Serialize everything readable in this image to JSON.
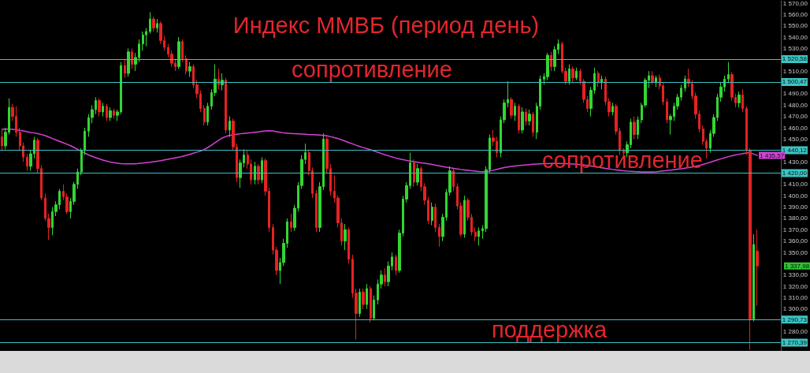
{
  "chart_data": {
    "type": "candlestick",
    "title": "Индекс ММВБ (период день)",
    "categories": [
      null,
      null,
      null,
      null,
      null,
      null,
      null,
      null,
      null,
      null,
      null,
      null,
      null,
      null,
      null,
      null,
      null,
      null,
      null,
      null,
      null,
      null,
      null,
      null,
      null,
      null,
      null,
      null,
      null,
      null,
      null,
      null,
      null,
      null,
      null,
      null,
      null,
      null,
      null,
      null,
      null,
      null,
      null,
      null,
      null,
      null,
      null,
      null,
      null,
      null,
      null,
      null,
      null,
      null,
      null,
      null,
      null,
      null,
      null,
      null,
      null,
      null,
      null,
      null,
      null,
      null,
      null,
      null,
      null,
      null,
      null,
      null,
      null,
      null,
      null,
      null,
      null,
      null,
      null,
      null,
      null,
      null,
      null,
      null,
      null,
      null,
      null,
      null,
      null,
      null,
      null,
      null,
      null,
      null,
      null,
      null,
      null,
      null,
      null,
      null,
      null,
      null,
      null,
      null,
      null,
      null,
      null,
      null,
      null,
      null,
      null,
      null,
      null,
      null,
      null,
      null,
      null,
      null,
      null,
      null,
      null,
      null,
      null,
      null,
      null,
      null,
      null,
      null,
      null,
      null,
      null,
      null,
      null,
      null,
      null,
      null,
      null,
      null,
      null,
      null,
      null,
      null,
      null,
      null,
      null,
      null,
      null,
      null,
      null,
      null,
      null,
      null,
      null,
      null,
      null,
      null,
      null,
      null,
      null,
      null,
      null,
      null,
      null,
      null,
      null,
      null,
      null,
      null,
      null,
      null,
      null,
      null,
      null,
      null,
      null,
      null,
      null,
      null,
      null,
      null,
      null,
      null,
      null,
      null,
      null,
      null,
      null,
      null,
      null,
      null,
      null,
      null,
      null,
      null,
      null,
      null,
      null,
      null,
      null,
      null,
      null,
      null,
      null,
      null,
      null,
      null,
      null,
      null,
      null,
      null,
      null,
      null,
      null,
      null,
      null,
      null
    ],
    "ohlc": [
      [
        1452,
        1458,
        1440,
        1444
      ],
      [
        1444,
        1460,
        1441,
        1456
      ],
      [
        1456,
        1486,
        1454,
        1478
      ],
      [
        1478,
        1481,
        1466,
        1470
      ],
      [
        1470,
        1479,
        1452,
        1456
      ],
      [
        1456,
        1460,
        1440,
        1444
      ],
      [
        1444,
        1447,
        1430,
        1434
      ],
      [
        1434,
        1437,
        1422,
        1426
      ],
      [
        1426,
        1440,
        1422,
        1437
      ],
      [
        1437,
        1452,
        1433,
        1449
      ],
      [
        1449,
        1451,
        1420,
        1424
      ],
      [
        1424,
        1427,
        1396,
        1398
      ],
      [
        1398,
        1402,
        1378,
        1380
      ],
      [
        1380,
        1384,
        1361,
        1372
      ],
      [
        1372,
        1390,
        1365,
        1386
      ],
      [
        1386,
        1395,
        1382,
        1392
      ],
      [
        1392,
        1406,
        1388,
        1404
      ],
      [
        1404,
        1410,
        1396,
        1399
      ],
      [
        1399,
        1402,
        1384,
        1386
      ],
      [
        1386,
        1398,
        1380,
        1395
      ],
      [
        1395,
        1412,
        1392,
        1410
      ],
      [
        1410,
        1424,
        1406,
        1421
      ],
      [
        1421,
        1442,
        1418,
        1440
      ],
      [
        1440,
        1460,
        1436,
        1457
      ],
      [
        1457,
        1472,
        1452,
        1469
      ],
      [
        1469,
        1480,
        1464,
        1476
      ],
      [
        1476,
        1487,
        1472,
        1484
      ],
      [
        1484,
        1486,
        1470,
        1474
      ],
      [
        1474,
        1482,
        1470,
        1479
      ],
      [
        1479,
        1481,
        1466,
        1469
      ],
      [
        1469,
        1478,
        1466,
        1475
      ],
      [
        1475,
        1477,
        1468,
        1471
      ],
      [
        1471,
        1476,
        1466,
        1474
      ],
      [
        1474,
        1518,
        1472,
        1515
      ],
      [
        1515,
        1520,
        1504,
        1508
      ],
      [
        1508,
        1530,
        1505,
        1527
      ],
      [
        1527,
        1530,
        1512,
        1516
      ],
      [
        1516,
        1526,
        1510,
        1522
      ],
      [
        1522,
        1538,
        1518,
        1534
      ],
      [
        1534,
        1545,
        1528,
        1542
      ],
      [
        1542,
        1548,
        1532,
        1545
      ],
      [
        1545,
        1562,
        1543,
        1556
      ],
      [
        1556,
        1558,
        1545,
        1548
      ],
      [
        1548,
        1556,
        1544,
        1552
      ],
      [
        1552,
        1554,
        1534,
        1537
      ],
      [
        1537,
        1541,
        1528,
        1531
      ],
      [
        1531,
        1534,
        1522,
        1525
      ],
      [
        1525,
        1528,
        1514,
        1517
      ],
      [
        1517,
        1521,
        1510,
        1514
      ],
      [
        1514,
        1540,
        1512,
        1536
      ],
      [
        1536,
        1538,
        1518,
        1521
      ],
      [
        1521,
        1524,
        1507,
        1510
      ],
      [
        1510,
        1518,
        1505,
        1514
      ],
      [
        1514,
        1516,
        1495,
        1498
      ],
      [
        1498,
        1502,
        1486,
        1490
      ],
      [
        1490,
        1493,
        1474,
        1477
      ],
      [
        1477,
        1480,
        1462,
        1465
      ],
      [
        1465,
        1482,
        1462,
        1479
      ],
      [
        1479,
        1494,
        1476,
        1491
      ],
      [
        1491,
        1516,
        1488,
        1503
      ],
      [
        1503,
        1512,
        1494,
        1498
      ],
      [
        1498,
        1508,
        1493,
        1502
      ],
      [
        1502,
        1504,
        1455,
        1458
      ],
      [
        1458,
        1470,
        1452,
        1466
      ],
      [
        1466,
        1468,
        1440,
        1443
      ],
      [
        1443,
        1446,
        1412,
        1416
      ],
      [
        1416,
        1432,
        1407,
        1429
      ],
      [
        1429,
        1441,
        1425,
        1436
      ],
      [
        1436,
        1440,
        1424,
        1428
      ],
      [
        1428,
        1432,
        1410,
        1414
      ],
      [
        1414,
        1430,
        1410,
        1426
      ],
      [
        1426,
        1428,
        1410,
        1414
      ],
      [
        1414,
        1434,
        1411,
        1431
      ],
      [
        1431,
        1433,
        1400,
        1404
      ],
      [
        1404,
        1407,
        1368,
        1372
      ],
      [
        1372,
        1375,
        1348,
        1352
      ],
      [
        1352,
        1355,
        1330,
        1334
      ],
      [
        1334,
        1345,
        1322,
        1341
      ],
      [
        1341,
        1362,
        1338,
        1358
      ],
      [
        1358,
        1380,
        1354,
        1377
      ],
      [
        1377,
        1384,
        1368,
        1372
      ],
      [
        1372,
        1392,
        1369,
        1389
      ],
      [
        1389,
        1412,
        1386,
        1409
      ],
      [
        1409,
        1436,
        1406,
        1432
      ],
      [
        1432,
        1446,
        1428,
        1438
      ],
      [
        1438,
        1440,
        1418,
        1422
      ],
      [
        1422,
        1425,
        1398,
        1402
      ],
      [
        1402,
        1405,
        1368,
        1372
      ],
      [
        1372,
        1412,
        1368,
        1408
      ],
      [
        1408,
        1455,
        1405,
        1450
      ],
      [
        1450,
        1452,
        1420,
        1424
      ],
      [
        1424,
        1428,
        1400,
        1404
      ],
      [
        1404,
        1418,
        1394,
        1398
      ],
      [
        1398,
        1400,
        1372,
        1376
      ],
      [
        1376,
        1380,
        1356,
        1360
      ],
      [
        1360,
        1375,
        1352,
        1370
      ],
      [
        1370,
        1372,
        1340,
        1344
      ],
      [
        1344,
        1348,
        1310,
        1314
      ],
      [
        1314,
        1318,
        1273,
        1296
      ],
      [
        1296,
        1318,
        1293,
        1315
      ],
      [
        1315,
        1318,
        1300,
        1304
      ],
      [
        1304,
        1322,
        1300,
        1318
      ],
      [
        1318,
        1320,
        1288,
        1292
      ],
      [
        1292,
        1312,
        1290,
        1308
      ],
      [
        1308,
        1326,
        1304,
        1322
      ],
      [
        1322,
        1334,
        1318,
        1330
      ],
      [
        1330,
        1336,
        1320,
        1324
      ],
      [
        1324,
        1342,
        1320,
        1338
      ],
      [
        1338,
        1350,
        1334,
        1346
      ],
      [
        1346,
        1348,
        1330,
        1334
      ],
      [
        1334,
        1370,
        1332,
        1367
      ],
      [
        1367,
        1400,
        1364,
        1397
      ],
      [
        1397,
        1412,
        1394,
        1409
      ],
      [
        1409,
        1438,
        1406,
        1429
      ],
      [
        1429,
        1432,
        1408,
        1412
      ],
      [
        1412,
        1428,
        1409,
        1424
      ],
      [
        1424,
        1426,
        1404,
        1408
      ],
      [
        1408,
        1411,
        1392,
        1396
      ],
      [
        1396,
        1399,
        1375,
        1378
      ],
      [
        1378,
        1394,
        1374,
        1390
      ],
      [
        1390,
        1393,
        1368,
        1372
      ],
      [
        1372,
        1375,
        1355,
        1364
      ],
      [
        1364,
        1384,
        1360,
        1381
      ],
      [
        1381,
        1406,
        1378,
        1403
      ],
      [
        1403,
        1426,
        1400,
        1422
      ],
      [
        1422,
        1424,
        1404,
        1408
      ],
      [
        1408,
        1411,
        1388,
        1391
      ],
      [
        1391,
        1394,
        1364,
        1366
      ],
      [
        1366,
        1400,
        1363,
        1396
      ],
      [
        1396,
        1398,
        1378,
        1381
      ],
      [
        1381,
        1384,
        1365,
        1368
      ],
      [
        1368,
        1372,
        1360,
        1364
      ],
      [
        1364,
        1372,
        1356,
        1369
      ],
      [
        1369,
        1374,
        1362,
        1371
      ],
      [
        1371,
        1426,
        1368,
        1423
      ],
      [
        1423,
        1454,
        1420,
        1451
      ],
      [
        1451,
        1458,
        1444,
        1448
      ],
      [
        1448,
        1452,
        1434,
        1438
      ],
      [
        1438,
        1470,
        1434,
        1467
      ],
      [
        1467,
        1485,
        1464,
        1482
      ],
      [
        1482,
        1501,
        1478,
        1485
      ],
      [
        1485,
        1487,
        1468,
        1471
      ],
      [
        1471,
        1482,
        1466,
        1479
      ],
      [
        1479,
        1481,
        1455,
        1458
      ],
      [
        1458,
        1478,
        1455,
        1474
      ],
      [
        1474,
        1477,
        1462,
        1466
      ],
      [
        1466,
        1476,
        1462,
        1472
      ],
      [
        1472,
        1474,
        1452,
        1456
      ],
      [
        1456,
        1482,
        1450,
        1479
      ],
      [
        1479,
        1506,
        1476,
        1503
      ],
      [
        1503,
        1508,
        1498,
        1505
      ],
      [
        1505,
        1526,
        1502,
        1524
      ],
      [
        1524,
        1527,
        1510,
        1514
      ],
      [
        1514,
        1532,
        1510,
        1529
      ],
      [
        1529,
        1538,
        1525,
        1534
      ],
      [
        1534,
        1536,
        1508,
        1510
      ],
      [
        1510,
        1513,
        1498,
        1501
      ],
      [
        1501,
        1516,
        1498,
        1512
      ],
      [
        1512,
        1514,
        1500,
        1504
      ],
      [
        1504,
        1513,
        1502,
        1510
      ],
      [
        1510,
        1512,
        1498,
        1501
      ],
      [
        1501,
        1503,
        1482,
        1485
      ],
      [
        1485,
        1488,
        1474,
        1477
      ],
      [
        1477,
        1496,
        1470,
        1493
      ],
      [
        1493,
        1513,
        1490,
        1508
      ],
      [
        1508,
        1510,
        1496,
        1500
      ],
      [
        1500,
        1506,
        1494,
        1503
      ],
      [
        1503,
        1505,
        1480,
        1483
      ],
      [
        1483,
        1486,
        1470,
        1474
      ],
      [
        1474,
        1482,
        1471,
        1479
      ],
      [
        1479,
        1481,
        1454,
        1457
      ],
      [
        1457,
        1460,
        1436,
        1440
      ],
      [
        1440,
        1442,
        1426,
        1438
      ],
      [
        1438,
        1448,
        1434,
        1445
      ],
      [
        1445,
        1468,
        1442,
        1465
      ],
      [
        1465,
        1470,
        1450,
        1454
      ],
      [
        1454,
        1470,
        1450,
        1467
      ],
      [
        1467,
        1482,
        1464,
        1480
      ],
      [
        1480,
        1504,
        1478,
        1502
      ],
      [
        1502,
        1510,
        1495,
        1506
      ],
      [
        1506,
        1510,
        1498,
        1500
      ],
      [
        1500,
        1506,
        1496,
        1504
      ],
      [
        1504,
        1507,
        1494,
        1497
      ],
      [
        1497,
        1500,
        1480,
        1483
      ],
      [
        1483,
        1486,
        1464,
        1467
      ],
      [
        1467,
        1472,
        1454,
        1470
      ],
      [
        1470,
        1482,
        1466,
        1479
      ],
      [
        1479,
        1490,
        1476,
        1487
      ],
      [
        1487,
        1498,
        1484,
        1495
      ],
      [
        1495,
        1506,
        1492,
        1503
      ],
      [
        1503,
        1512,
        1496,
        1499
      ],
      [
        1499,
        1502,
        1485,
        1488
      ],
      [
        1488,
        1491,
        1468,
        1472
      ],
      [
        1472,
        1475,
        1456,
        1459
      ],
      [
        1459,
        1462,
        1445,
        1448
      ],
      [
        1448,
        1450,
        1433,
        1442
      ],
      [
        1442,
        1458,
        1438,
        1455
      ],
      [
        1455,
        1472,
        1452,
        1469
      ],
      [
        1469,
        1490,
        1466,
        1487
      ],
      [
        1487,
        1500,
        1483,
        1496
      ],
      [
        1496,
        1506,
        1492,
        1503
      ],
      [
        1503,
        1518,
        1500,
        1507
      ],
      [
        1507,
        1509,
        1484,
        1487
      ],
      [
        1487,
        1490,
        1478,
        1482
      ],
      [
        1482,
        1492,
        1478,
        1489
      ],
      [
        1489,
        1494,
        1474,
        1477
      ],
      [
        1477,
        1479,
        1436,
        1440
      ],
      [
        1440,
        1442,
        1264,
        1291
      ],
      [
        1291,
        1366,
        1289,
        1357
      ],
      [
        1351,
        1370,
        1303,
        1337.98
      ],
      null,
      null,
      null,
      null,
      null,
      null
    ],
    "value_labels": [
      null,
      null,
      null,
      null,
      null,
      null,
      null,
      null,
      null,
      null,
      null,
      null,
      null,
      null,
      null,
      null,
      null,
      null,
      null,
      null,
      null,
      null,
      null,
      null,
      null,
      null,
      null,
      null,
      null,
      null,
      null,
      null,
      null,
      null,
      null,
      null,
      null,
      null,
      null,
      null,
      null,
      null,
      null,
      null,
      null,
      null,
      null,
      null,
      null,
      null,
      null,
      null,
      null,
      null,
      null,
      null,
      null,
      null,
      null,
      null,
      null,
      null,
      null,
      null,
      null,
      null,
      null,
      null,
      null,
      null,
      null,
      null,
      null,
      null,
      null,
      null,
      null,
      null,
      null,
      null,
      null,
      null,
      null,
      null,
      null,
      null,
      null,
      null,
      null,
      null,
      null,
      null,
      null,
      null,
      null,
      null,
      null,
      null,
      null,
      null,
      null,
      null,
      null,
      null,
      null,
      null,
      null,
      null,
      null,
      null,
      null,
      null,
      null,
      null,
      null,
      null,
      null,
      null,
      null,
      null,
      null,
      null,
      null,
      null,
      null,
      null,
      null,
      null,
      null,
      null,
      null,
      null,
      null,
      null,
      null,
      null,
      null,
      null,
      null,
      null,
      null,
      null,
      null,
      null,
      null,
      null,
      null,
      null,
      null,
      null,
      null,
      null,
      null,
      null,
      null,
      null,
      null,
      null,
      null,
      null,
      null,
      null,
      null,
      null,
      null,
      null,
      null,
      null,
      null,
      null,
      null,
      null,
      null,
      null,
      null,
      null,
      null,
      null,
      null,
      null,
      null,
      null,
      null,
      null,
      null,
      null,
      null,
      null,
      null,
      null,
      null,
      null,
      null,
      null,
      null,
      null,
      null,
      null,
      null,
      null,
      null,
      null,
      null,
      null,
      null,
      null,
      null,
      null,
      null,
      "1 337,98",
      null,
      null,
      null,
      null,
      null,
      null
    ],
    "series": [
      {
        "type": "line",
        "color": "#d442d4",
        "values": [
          1458.7,
          1458.8,
          1458.8,
          1458.6,
          1458.3,
          1457.8,
          1457.2,
          1456.5,
          1455.9,
          1455.4,
          1454.8,
          1454.0,
          1453.0,
          1451.8,
          1450.5,
          1449.2,
          1448.0,
          1446.8,
          1445.5,
          1444.2,
          1442.6,
          1441.0,
          1439.2,
          1437.6,
          1436.0,
          1434.8,
          1433.6,
          1432.5,
          1431.5,
          1430.6,
          1429.8,
          1429.2,
          1428.7,
          1428.4,
          1428.2,
          1428.1,
          1428.1,
          1428.2,
          1428.5,
          1428.8,
          1429.2,
          1429.5,
          1430.0,
          1430.5,
          1431.0,
          1431.6,
          1432.2,
          1432.8,
          1433.4,
          1434.0,
          1434.8,
          1435.6,
          1436.5,
          1437.5,
          1438.5,
          1439.5,
          1440.8,
          1442.6,
          1444.6,
          1446.8,
          1449.0,
          1451.0,
          1452.3,
          1453.2,
          1453.8,
          1454.3,
          1454.7,
          1455.0,
          1455.3,
          1455.6,
          1456.0,
          1456.4,
          1456.8,
          1457.2,
          1457.4,
          1457.2,
          1456.6,
          1456.0,
          1455.4,
          1455.2,
          1455.0,
          1454.8,
          1454.6,
          1454.4,
          1454.2,
          1454.0,
          1453.9,
          1453.8,
          1453.6,
          1453.3,
          1452.8,
          1452.1,
          1451.3,
          1450.4,
          1449.4,
          1448.2,
          1447.0,
          1445.8,
          1444.6,
          1443.5,
          1442.5,
          1441.6,
          1440.6,
          1439.5,
          1438.4,
          1437.3,
          1436.2,
          1435.2,
          1434.2,
          1433.3,
          1432.5,
          1431.8,
          1431.2,
          1430.6,
          1430.0,
          1429.5,
          1429.0,
          1428.6,
          1428.2,
          1427.6,
          1427.0,
          1426.4,
          1425.8,
          1425.2,
          1424.7,
          1424.2,
          1423.7,
          1423.2,
          1422.8,
          1422.4,
          1422.0,
          1421.7,
          1421.4,
          1421.2,
          1421.3,
          1421.8,
          1422.5,
          1423.3,
          1424.1,
          1424.8,
          1425.4,
          1425.9,
          1426.3,
          1426.6,
          1426.9,
          1427.2,
          1427.5,
          1427.8,
          1428.0,
          1428.2,
          1428.3,
          1428.4,
          1428.5,
          1428.5,
          1428.5,
          1428.4,
          1428.3,
          1428.2,
          1428.0,
          1427.8,
          1427.5,
          1427.1,
          1426.7,
          1426.2,
          1425.7,
          1425.2,
          1424.7,
          1424.2,
          1423.7,
          1423.2,
          1422.8,
          1422.4,
          1422.0,
          1421.7,
          1421.5,
          1421.3,
          1421.2,
          1421.1,
          1421.0,
          1421.0,
          1421.0,
          1421.2,
          1421.5,
          1421.9,
          1422.3,
          1422.6,
          1423.0,
          1423.4,
          1423.8,
          1424.3,
          1424.8,
          1425.4,
          1426.0,
          1426.7,
          1427.6,
          1428.6,
          1429.6,
          1430.6,
          1431.6,
          1432.6,
          1433.6,
          1434.5,
          1435.3,
          1436.0,
          1436.6,
          1437.2,
          1437.7,
          1438.0,
          1436.8,
          1435.57,
          null,
          null,
          null,
          null,
          null,
          null
        ],
        "value_labels": [
          null,
          null,
          null,
          null,
          null,
          null,
          null,
          null,
          null,
          null,
          null,
          null,
          null,
          null,
          null,
          null,
          null,
          null,
          null,
          null,
          null,
          null,
          null,
          null,
          null,
          null,
          null,
          null,
          null,
          null,
          null,
          null,
          null,
          null,
          null,
          null,
          null,
          null,
          null,
          null,
          null,
          null,
          null,
          null,
          null,
          null,
          null,
          null,
          null,
          null,
          null,
          null,
          null,
          null,
          null,
          null,
          null,
          null,
          null,
          null,
          null,
          null,
          null,
          null,
          null,
          null,
          null,
          null,
          null,
          null,
          null,
          null,
          null,
          null,
          null,
          null,
          null,
          null,
          null,
          null,
          null,
          null,
          null,
          null,
          null,
          null,
          null,
          null,
          null,
          null,
          null,
          null,
          null,
          null,
          null,
          null,
          null,
          null,
          null,
          null,
          null,
          null,
          null,
          null,
          null,
          null,
          null,
          null,
          null,
          null,
          null,
          null,
          null,
          null,
          null,
          null,
          null,
          null,
          null,
          null,
          null,
          null,
          null,
          null,
          null,
          null,
          null,
          null,
          null,
          null,
          null,
          null,
          null,
          null,
          null,
          null,
          null,
          null,
          null,
          null,
          null,
          null,
          null,
          null,
          null,
          null,
          null,
          null,
          null,
          null,
          null,
          null,
          null,
          null,
          null,
          null,
          null,
          null,
          null,
          null,
          null,
          null,
          null,
          null,
          null,
          null,
          null,
          null,
          null,
          null,
          null,
          null,
          null,
          null,
          null,
          null,
          null,
          null,
          null,
          null,
          null,
          null,
          null,
          null,
          null,
          null,
          null,
          null,
          null,
          null,
          null,
          null,
          null,
          null,
          null,
          null,
          null,
          null,
          null,
          null,
          null,
          null,
          null,
          null,
          null,
          null,
          null,
          null,
          null,
          "1 435,57",
          null,
          null,
          null,
          null,
          null,
          null
        ]
      }
    ],
    "ylim": [
      1263,
      1572
    ],
    "yticks": [
      {
        "value": 1280,
        "label": "1 280,00"
      },
      {
        "value": 1300,
        "label": "1 300,00"
      },
      {
        "value": 1310,
        "label": "1 310,00"
      },
      {
        "value": 1320,
        "label": "1 320,00"
      },
      {
        "value": 1330,
        "label": "1 330,00"
      },
      {
        "value": 1350,
        "label": "1 350,00"
      },
      {
        "value": 1360,
        "label": "1 360,00"
      },
      {
        "value": 1370,
        "label": "1 370,00"
      },
      {
        "value": 1380,
        "label": "1 380,00"
      },
      {
        "value": 1390,
        "label": "1 390,00"
      },
      {
        "value": 1400,
        "label": "1 400,00"
      },
      {
        "value": 1410,
        "label": "1 410,00"
      },
      {
        "value": 1430,
        "label": "1 430,00"
      },
      {
        "value": 1450,
        "label": "1 450,00"
      },
      {
        "value": 1460,
        "label": "1 460,00"
      },
      {
        "value": 1470,
        "label": "1 470,00"
      },
      {
        "value": 1480,
        "label": "1 480,00"
      },
      {
        "value": 1490,
        "label": "1 490,00"
      },
      {
        "value": 1510,
        "label": "1 510,00"
      },
      {
        "value": 1530,
        "label": "1 530,00"
      },
      {
        "value": 1540,
        "label": "1 540,00"
      },
      {
        "value": 1550,
        "label": "1 550,00"
      },
      {
        "value": 1560,
        "label": "1 560,00"
      },
      {
        "value": 1570,
        "label": "1 570,00"
      }
    ],
    "ref_lines": [
      {
        "axis": "y",
        "value": 1520.58,
        "label": "1 520,58",
        "color": "#3cc4c4"
      },
      {
        "axis": "y",
        "value": 1500.47,
        "label": "1 500,47",
        "color": "#3cc4c4"
      },
      {
        "axis": "y",
        "value": 1440.12,
        "label": "1 440,12",
        "color": "#3cc4c4"
      },
      {
        "axis": "y",
        "value": 1420.0,
        "label": "1 420,00",
        "color": "#3cc4c4"
      },
      {
        "axis": "y",
        "value": 1290.73,
        "label": "1 290,73",
        "color": "#3cc4c4"
      },
      {
        "axis": "y",
        "value": 1270.39,
        "label": "1 270,39",
        "color": "#3cc4c4"
      }
    ],
    "annotations": [
      "сопротивление",
      "сопротивление",
      "поддержка"
    ],
    "tick_labels": "y",
    "grid": false
  }
}
